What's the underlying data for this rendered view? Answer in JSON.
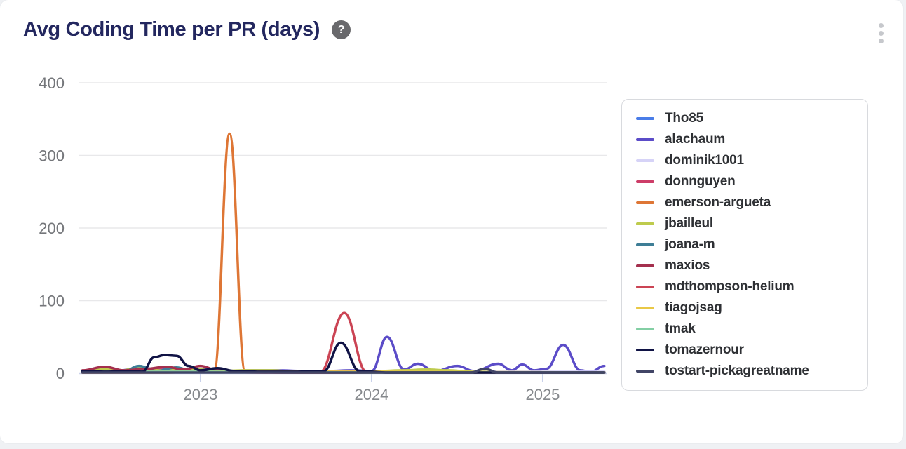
{
  "page": {
    "background": "#EFF1F4"
  },
  "card": {
    "title": "Avg Coding Time per PR (days)",
    "help_glyph": "?",
    "menu_icon": "kebab-vertical"
  },
  "colors": {
    "title": "#23275F",
    "y_axis_label": "#74767A",
    "x_axis_label": "#85888C",
    "x_axis_line": "#C9D1EA",
    "gridline": "#E8E8EA",
    "legend_border": "#D8DADE",
    "legend_text": "#2E3034",
    "help_icon_bg": "#69696C",
    "menu_dots": "#C6C8CC"
  },
  "chart_data": {
    "type": "line",
    "title": "Avg Coding Time per PR (days)",
    "xlabel": "",
    "ylabel": "",
    "ylim": [
      0,
      400
    ],
    "yticks": [
      0,
      100,
      200,
      300,
      400
    ],
    "xlim": [
      2022.31,
      2025.36
    ],
    "xticks": [
      {
        "value": 2023,
        "label": "2023"
      },
      {
        "value": 2024,
        "label": "2024"
      },
      {
        "value": 2025,
        "label": "2025"
      }
    ],
    "grid": true,
    "legend_position": "right",
    "series": [
      {
        "name": "Tho85",
        "color": "#4A7DE8",
        "points": [
          [
            2022.31,
            2
          ],
          [
            2022.5,
            3
          ],
          [
            2022.75,
            2
          ],
          [
            2023.0,
            2
          ],
          [
            2023.5,
            2
          ],
          [
            2024.0,
            2
          ],
          [
            2024.5,
            2
          ],
          [
            2025.0,
            1
          ],
          [
            2025.36,
            1
          ]
        ]
      },
      {
        "name": "alachaum",
        "color": "#5B4CC8",
        "points": [
          [
            2022.31,
            2
          ],
          [
            2022.5,
            3
          ],
          [
            2022.62,
            6
          ],
          [
            2022.72,
            3
          ],
          [
            2022.82,
            7
          ],
          [
            2022.92,
            3
          ],
          [
            2023.02,
            6
          ],
          [
            2023.12,
            3
          ],
          [
            2023.3,
            4
          ],
          [
            2023.45,
            4
          ],
          [
            2023.6,
            3
          ],
          [
            2023.75,
            3
          ],
          [
            2023.88,
            4
          ],
          [
            2024.0,
            3
          ],
          [
            2024.09,
            50
          ],
          [
            2024.19,
            5
          ],
          [
            2024.27,
            13
          ],
          [
            2024.37,
            3
          ],
          [
            2024.5,
            10
          ],
          [
            2024.6,
            3
          ],
          [
            2024.74,
            13
          ],
          [
            2024.82,
            4
          ],
          [
            2024.88,
            12
          ],
          [
            2024.95,
            4
          ],
          [
            2025.02,
            6
          ],
          [
            2025.12,
            39
          ],
          [
            2025.22,
            4
          ],
          [
            2025.28,
            2
          ],
          [
            2025.36,
            10
          ]
        ]
      },
      {
        "name": "dominik1001",
        "color": "#D6D3F7",
        "points": [
          [
            2022.31,
            2
          ],
          [
            2023.0,
            2
          ],
          [
            2023.8,
            2
          ],
          [
            2024.5,
            2
          ],
          [
            2025.36,
            2
          ]
        ]
      },
      {
        "name": "donnguyen",
        "color": "#CD3D68",
        "points": [
          [
            2022.31,
            3
          ],
          [
            2022.45,
            5
          ],
          [
            2022.58,
            3
          ],
          [
            2022.72,
            6
          ],
          [
            2022.85,
            3
          ],
          [
            2023.0,
            2
          ],
          [
            2023.5,
            2
          ],
          [
            2024.0,
            2
          ],
          [
            2025.0,
            1
          ],
          [
            2025.36,
            1
          ]
        ]
      },
      {
        "name": "emerson-argueta",
        "color": "#DE7635",
        "points": [
          [
            2022.31,
            1
          ],
          [
            2022.8,
            1
          ],
          [
            2023.0,
            2
          ],
          [
            2023.08,
            3
          ],
          [
            2023.17,
            330
          ],
          [
            2023.26,
            3
          ],
          [
            2023.35,
            2
          ],
          [
            2023.6,
            1
          ],
          [
            2024.0,
            1
          ],
          [
            2025.36,
            1
          ]
        ]
      },
      {
        "name": "jbailleul",
        "color": "#BECB4D",
        "points": [
          [
            2022.31,
            2
          ],
          [
            2022.42,
            6
          ],
          [
            2022.52,
            3
          ],
          [
            2022.63,
            7
          ],
          [
            2022.75,
            4
          ],
          [
            2022.88,
            6
          ],
          [
            2023.0,
            5
          ],
          [
            2023.1,
            3
          ],
          [
            2023.28,
            4
          ],
          [
            2023.42,
            4
          ],
          [
            2023.55,
            2
          ],
          [
            2023.8,
            1
          ],
          [
            2024.05,
            3
          ],
          [
            2024.18,
            4
          ],
          [
            2024.32,
            5
          ],
          [
            2024.45,
            4
          ],
          [
            2024.58,
            2
          ],
          [
            2024.8,
            1
          ],
          [
            2025.36,
            1
          ]
        ]
      },
      {
        "name": "joana-m",
        "color": "#3E7E96",
        "points": [
          [
            2022.31,
            2
          ],
          [
            2022.55,
            2
          ],
          [
            2022.64,
            10
          ],
          [
            2022.74,
            3
          ],
          [
            2022.86,
            8
          ],
          [
            2022.95,
            3
          ],
          [
            2023.1,
            2
          ],
          [
            2023.5,
            1
          ],
          [
            2024.0,
            1
          ],
          [
            2025.36,
            1
          ]
        ]
      },
      {
        "name": "maxios",
        "color": "#A4304E",
        "points": [
          [
            2022.31,
            4
          ],
          [
            2022.44,
            9
          ],
          [
            2022.55,
            4
          ],
          [
            2022.68,
            6
          ],
          [
            2022.8,
            9
          ],
          [
            2022.9,
            5
          ],
          [
            2023.0,
            10
          ],
          [
            2023.1,
            4
          ],
          [
            2023.22,
            2
          ],
          [
            2023.5,
            1
          ],
          [
            2024.0,
            1
          ],
          [
            2025.36,
            1
          ]
        ]
      },
      {
        "name": "mdthompson-helium",
        "color": "#CB4454",
        "points": [
          [
            2022.31,
            3
          ],
          [
            2022.5,
            2
          ],
          [
            2023.0,
            2
          ],
          [
            2023.4,
            1
          ],
          [
            2023.7,
            2
          ],
          [
            2023.84,
            83
          ],
          [
            2023.97,
            2
          ],
          [
            2024.2,
            1
          ],
          [
            2025.36,
            1
          ]
        ]
      },
      {
        "name": "tiagojsag",
        "color": "#E9C846",
        "points": [
          [
            2022.31,
            2
          ],
          [
            2023.0,
            2
          ],
          [
            2023.3,
            3
          ],
          [
            2023.6,
            2
          ],
          [
            2024.0,
            2
          ],
          [
            2025.36,
            1
          ]
        ]
      },
      {
        "name": "tmak",
        "color": "#83CFA4",
        "points": [
          [
            2022.31,
            2
          ],
          [
            2022.6,
            2
          ],
          [
            2023.0,
            2
          ],
          [
            2024.0,
            1
          ],
          [
            2025.36,
            1
          ]
        ]
      },
      {
        "name": "tomazernour",
        "color": "#101345",
        "points": [
          [
            2022.31,
            3
          ],
          [
            2022.45,
            2
          ],
          [
            2022.58,
            3
          ],
          [
            2022.66,
            2
          ],
          [
            2022.73,
            22
          ],
          [
            2022.79,
            25
          ],
          [
            2022.86,
            24
          ],
          [
            2022.93,
            10
          ],
          [
            2023.0,
            4
          ],
          [
            2023.1,
            7
          ],
          [
            2023.2,
            3
          ],
          [
            2023.35,
            2
          ],
          [
            2023.55,
            2
          ],
          [
            2023.72,
            3
          ],
          [
            2023.82,
            42
          ],
          [
            2023.93,
            3
          ],
          [
            2024.1,
            1
          ],
          [
            2024.4,
            1
          ],
          [
            2025.0,
            1
          ],
          [
            2025.36,
            1
          ]
        ]
      },
      {
        "name": "tostart-pickagreatname",
        "color": "#414566",
        "points": [
          [
            2022.31,
            1
          ],
          [
            2023.0,
            1
          ],
          [
            2023.5,
            1
          ],
          [
            2024.0,
            1
          ],
          [
            2024.58,
            1
          ],
          [
            2024.66,
            6
          ],
          [
            2024.74,
            1
          ],
          [
            2025.0,
            1
          ],
          [
            2025.36,
            1
          ]
        ]
      }
    ]
  }
}
